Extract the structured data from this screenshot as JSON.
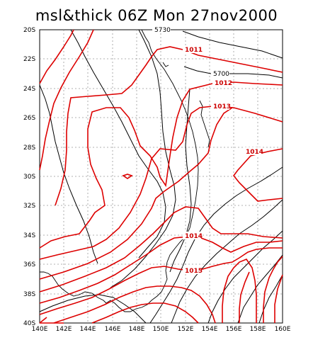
{
  "title": "msl&thick 06Z Mon 27nov2000",
  "y_axis_labels": [
    "20S",
    "22S",
    "24S",
    "26S",
    "28S",
    "30S",
    "32S",
    "34S",
    "36S",
    "38S",
    "40S"
  ],
  "x_axis_labels": [
    "140E",
    "142E",
    "144E",
    "146E",
    "148E",
    "150E",
    "152E",
    "154E",
    "156E",
    "158E",
    "160E"
  ],
  "msl_contour_labels": [
    "1011",
    "1012",
    "1013",
    "1014",
    "1014",
    "1015"
  ],
  "thickness_contour_labels": [
    "5700",
    "5730"
  ],
  "colors": {
    "msl": "#dd0000",
    "thickness": "#000000",
    "grid": "#999999"
  }
}
